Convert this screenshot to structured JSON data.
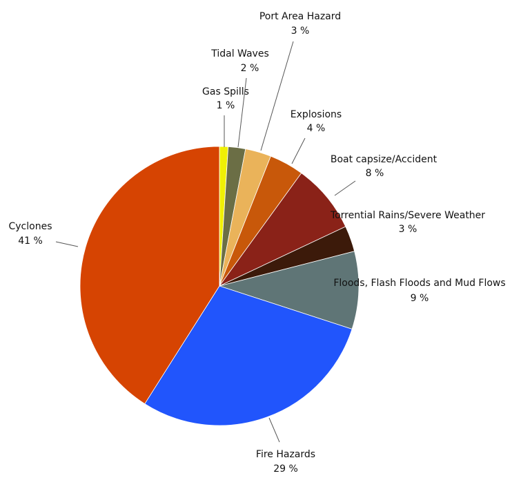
{
  "chart_data": {
    "type": "pie",
    "categories": [
      "Gas Spills",
      "Tidal Waves",
      "Port Area Hazard",
      "Explosions",
      "Boat capsize/Accident",
      "Torrential Rains/Severe Weather",
      "Floods, Flash Floods and Mud Flows",
      "Fire Hazards",
      "Cyclones"
    ],
    "values": [
      1,
      2,
      3,
      4,
      8,
      3,
      9,
      29,
      41
    ],
    "value_labels": [
      "1 %",
      "2 %",
      "3 %",
      "4 %",
      "8 %",
      "3 %",
      "9 %",
      "29 %",
      "41 %"
    ],
    "colors": [
      "#f0f005",
      "#6b6e45",
      "#eab35a",
      "#c8580a",
      "#8a2218",
      "#3c1a0a",
      "#5f7576",
      "#2155fc",
      "#d64402"
    ]
  }
}
